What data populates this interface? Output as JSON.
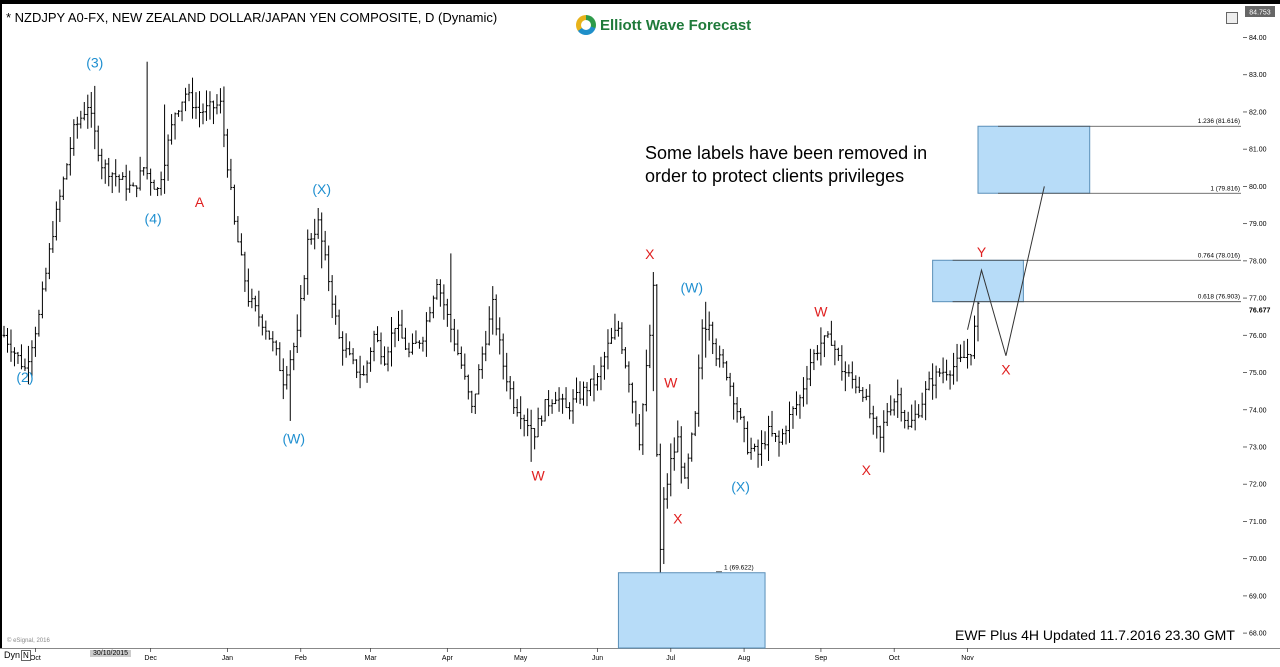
{
  "header": {
    "title": "* NZDJPY A0-FX, NEW ZEALAND DOLLAR/JAPAN YEN COMPOSITE, D (Dynamic)",
    "brand": "Elliott Wave Forecast"
  },
  "note": {
    "line1": "Some labels have been removed in",
    "line2": "order to protect clients privileges"
  },
  "footer": {
    "updated": "EWF Plus 4H Updated 11.7.2016 23.30 GMT",
    "copyright": "© eSignal, 2016",
    "dyn": "Dyn",
    "dyn_btn": "N",
    "date_highlight": "30/10/2015"
  },
  "colors": {
    "wave_blue": "#1f8fd0",
    "wave_red": "#e02020",
    "box_fill": "#b7dcf8",
    "box_stroke": "#5a8fb8",
    "bar": "#000000"
  },
  "chart_data": {
    "type": "ohlc",
    "symbol": "NZDJPY",
    "ylim": [
      67.6,
      84.9
    ],
    "last_price": "76.677",
    "current_top": "84.753",
    "y_ticks": [
      68.0,
      69.0,
      70.0,
      71.0,
      72.0,
      73.0,
      74.0,
      75.0,
      76.0,
      77.0,
      78.0,
      79.0,
      80.0,
      81.0,
      82.0,
      83.0,
      84.0
    ],
    "x_ticks": [
      {
        "label": "Oct",
        "i": 9
      },
      {
        "label": "Dec",
        "i": 42
      },
      {
        "label": "Jan",
        "i": 64
      },
      {
        "label": "Feb",
        "i": 85
      },
      {
        "label": "Mar",
        "i": 105
      },
      {
        "label": "Apr",
        "i": 127
      },
      {
        "label": "May",
        "i": 148
      },
      {
        "label": "Jun",
        "i": 170
      },
      {
        "label": "Jul",
        "i": 191
      },
      {
        "label": "Aug",
        "i": 212
      },
      {
        "label": "Sep",
        "i": 234
      },
      {
        "label": "Oct",
        "i": 255
      },
      {
        "label": "Nov",
        "i": 276
      }
    ],
    "bar_count": 280,
    "anchors": [
      [
        0,
        76.0
      ],
      [
        6,
        75.1
      ],
      [
        10,
        76.5
      ],
      [
        14,
        78.8
      ],
      [
        20,
        81.5
      ],
      [
        24,
        82.2
      ],
      [
        28,
        80.6
      ],
      [
        33,
        80.2
      ],
      [
        37,
        79.9
      ],
      [
        40,
        80.5
      ],
      [
        44,
        79.9
      ],
      [
        49,
        82.0
      ],
      [
        52,
        82.5
      ],
      [
        56,
        82.0
      ],
      [
        62,
        82.2
      ],
      [
        66,
        79.0
      ],
      [
        70,
        77.0
      ],
      [
        75,
        76.2
      ],
      [
        78,
        75.5
      ],
      [
        80,
        74.8
      ],
      [
        84,
        76.0
      ],
      [
        87,
        78.5
      ],
      [
        90,
        79.0
      ],
      [
        93,
        77.5
      ],
      [
        96,
        75.9
      ],
      [
        100,
        75.2
      ],
      [
        103,
        74.9
      ],
      [
        106,
        76.0
      ],
      [
        109,
        75.4
      ],
      [
        112,
        76.3
      ],
      [
        116,
        75.5
      ],
      [
        120,
        76.0
      ],
      [
        124,
        77.5
      ],
      [
        127,
        76.5
      ],
      [
        131,
        75.2
      ],
      [
        134,
        74.0
      ],
      [
        137,
        75.5
      ],
      [
        140,
        76.8
      ],
      [
        143,
        75.2
      ],
      [
        146,
        74.2
      ],
      [
        149,
        73.8
      ],
      [
        152,
        73.4
      ],
      [
        155,
        74.1
      ],
      [
        158,
        74.4
      ],
      [
        161,
        74.0
      ],
      [
        164,
        74.3
      ],
      [
        167,
        74.6
      ],
      [
        170,
        74.8
      ],
      [
        173,
        75.7
      ],
      [
        176,
        76.2
      ],
      [
        179,
        74.8
      ],
      [
        182,
        73.2
      ],
      [
        185,
        76.0
      ],
      [
        186,
        77.2
      ],
      [
        187,
        72.8
      ],
      [
        188,
        70.2
      ],
      [
        189,
        71.5
      ],
      [
        191,
        72.6
      ],
      [
        193,
        73.2
      ],
      [
        195,
        72.0
      ],
      [
        198,
        73.8
      ],
      [
        200,
        76.2
      ],
      [
        202,
        76.4
      ],
      [
        204,
        75.5
      ],
      [
        207,
        75.0
      ],
      [
        210,
        74.0
      ],
      [
        213,
        73.0
      ],
      [
        216,
        72.8
      ],
      [
        219,
        73.4
      ],
      [
        222,
        73.1
      ],
      [
        225,
        73.8
      ],
      [
        228,
        74.3
      ],
      [
        231,
        75.3
      ],
      [
        234,
        75.8
      ],
      [
        237,
        75.9
      ],
      [
        240,
        75.1
      ],
      [
        243,
        74.8
      ],
      [
        246,
        74.5
      ],
      [
        249,
        73.6
      ],
      [
        251,
        73.2
      ],
      [
        253,
        74.0
      ],
      [
        256,
        74.4
      ],
      [
        259,
        73.5
      ],
      [
        262,
        74.0
      ],
      [
        265,
        74.7
      ],
      [
        268,
        75.0
      ],
      [
        271,
        75.1
      ],
      [
        274,
        75.3
      ],
      [
        277,
        75.6
      ],
      [
        279,
        76.7
      ]
    ],
    "spikes": [
      {
        "i": 41,
        "high": 83.35,
        "low": 81.2
      },
      {
        "i": 26,
        "high": 82.7,
        "low": 81.0
      },
      {
        "i": 46,
        "high": 82.2,
        "low": 79.8
      },
      {
        "i": 82,
        "high": 75.6,
        "low": 73.7
      },
      {
        "i": 91,
        "high": 79.3,
        "low": 77.8
      },
      {
        "i": 128,
        "high": 78.2,
        "low": 76.8
      },
      {
        "i": 186,
        "high": 77.7,
        "low": 74.5
      },
      {
        "i": 188,
        "high": 72.6,
        "low": 69.25
      },
      {
        "i": 201,
        "high": 76.9,
        "low": 75.4
      },
      {
        "i": 151,
        "high": 74.0,
        "low": 72.6
      },
      {
        "i": 241,
        "high": 75.3,
        "low": 74.5
      }
    ],
    "fib_levels": [
      {
        "label": "1.236 (81.616)",
        "value": 81.616
      },
      {
        "label": "1 (79.816)",
        "value": 79.816
      },
      {
        "label": "0.764 (78.016)",
        "value": 78.016
      },
      {
        "label": "0.618 (76.903)",
        "value": 76.903
      },
      {
        "label": "1 (69.622)",
        "value": 69.622
      }
    ],
    "boxes": [
      {
        "name": "upper-target",
        "i0": 279,
        "i1": 311,
        "top": 81.616,
        "bottom": 79.816
      },
      {
        "name": "mid-target",
        "i0": 266,
        "i1": 292,
        "top": 78.016,
        "bottom": 76.903
      },
      {
        "name": "lower-target",
        "i0": 176,
        "i1": 218,
        "top": 69.622,
        "bottom": 67.6
      }
    ],
    "projection": [
      {
        "i": 276,
        "y": 76.15
      },
      {
        "i": 280,
        "y": 77.75
      },
      {
        "i": 287,
        "y": 75.45
      },
      {
        "i": 298,
        "y": 80.0
      }
    ],
    "wave_labels": [
      {
        "text": "(3)",
        "color": "blue",
        "i": 26,
        "y": 83.2
      },
      {
        "text": "(4)",
        "color": "blue",
        "i": 43,
        "y": 79.0,
        "dx": -1
      },
      {
        "text": "A",
        "color": "red",
        "i": 56,
        "y": 79.45
      },
      {
        "text": "(2)",
        "color": "blue",
        "i": 6,
        "y": 74.75
      },
      {
        "text": "(X)",
        "color": "blue",
        "i": 91,
        "y": 79.8
      },
      {
        "text": "(W)",
        "color": "blue",
        "i": 83,
        "y": 73.1
      },
      {
        "text": "X",
        "color": "red",
        "i": 185,
        "y": 78.05
      },
      {
        "text": "(W)",
        "color": "blue",
        "i": 197,
        "y": 77.15
      },
      {
        "text": "W",
        "color": "red",
        "i": 191,
        "y": 74.6
      },
      {
        "text": "X",
        "color": "red",
        "i": 193,
        "y": 70.95
      },
      {
        "text": "W",
        "color": "red",
        "i": 153,
        "y": 72.1
      },
      {
        "text": "(X)",
        "color": "blue",
        "i": 211,
        "y": 71.8
      },
      {
        "text": "W",
        "color": "red",
        "i": 234,
        "y": 76.5
      },
      {
        "text": "X",
        "color": "red",
        "i": 247,
        "y": 72.25
      },
      {
        "text": "Y",
        "color": "red",
        "i": 280,
        "y": 78.1
      },
      {
        "text": "X",
        "color": "red",
        "i": 287,
        "y": 74.95
      }
    ]
  }
}
